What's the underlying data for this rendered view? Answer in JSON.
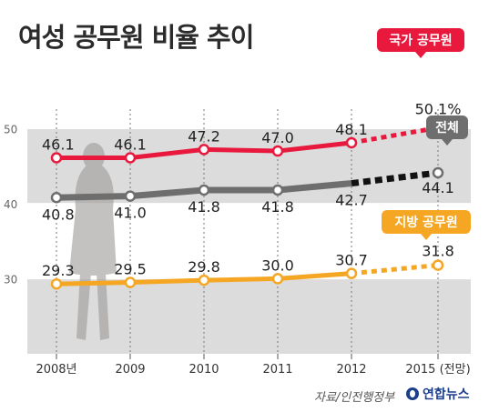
{
  "title": "여성 공무원 비율 추이",
  "source": "자료/인전행정부",
  "logo": "연합뉴스",
  "colors": {
    "national": "#e8193c",
    "total": "#6e6e6e",
    "local": "#f5a623",
    "total_dash": "#111111",
    "band": "#dcdcdc"
  },
  "chart_data": {
    "type": "line",
    "categories": [
      "2008년",
      "2009",
      "2010",
      "2011",
      "2012",
      "2015 (전망)"
    ],
    "ylim": [
      20,
      55
    ],
    "yticks": [
      30,
      40,
      50
    ],
    "ytick_labels": [
      "30",
      "40",
      "50"
    ],
    "grid": true,
    "projected_from_index": 4,
    "series": [
      {
        "key": "national",
        "name": "국가 공무원",
        "values": [
          46.1,
          46.1,
          47.2,
          47.0,
          48.1,
          50.1
        ],
        "labels": [
          "46.1",
          "46.1",
          "47.2",
          "47.0",
          "48.1",
          "50.1%"
        ]
      },
      {
        "key": "total",
        "name": "전체",
        "values": [
          40.8,
          41.0,
          41.8,
          41.8,
          42.7,
          44.1
        ],
        "labels": [
          "40.8",
          "41.0",
          "41.8",
          "41.8",
          "42.7",
          "44.1"
        ]
      },
      {
        "key": "local",
        "name": "지방 공무원",
        "values": [
          29.3,
          29.5,
          29.8,
          30.0,
          30.7,
          31.8
        ],
        "labels": [
          "29.3",
          "29.5",
          "29.8",
          "30.0",
          "30.7",
          "31.8"
        ]
      }
    ]
  }
}
